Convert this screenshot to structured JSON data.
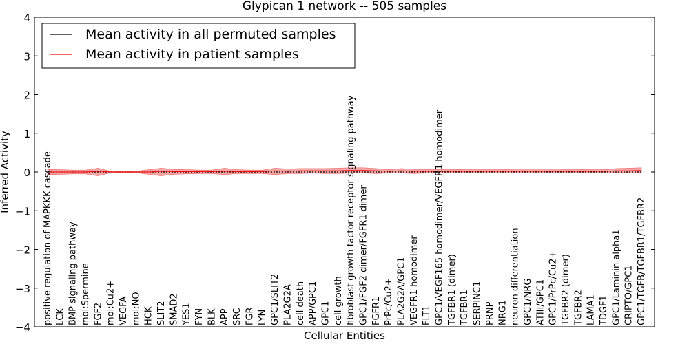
{
  "chart_data": {
    "type": "line",
    "title": "Glypican 1 network -- 505 samples",
    "xlabel": "Cellular Entities",
    "ylabel": "Inferred Activity",
    "ylim": [
      -4,
      4
    ],
    "yticks": [
      -4,
      -3,
      -2,
      -1,
      0,
      1,
      2,
      3,
      4
    ],
    "grid": false,
    "legend_position": "top-left",
    "categories": [
      "positive regulation of MAPKKK cascade",
      "LCK",
      "BMP signaling pathway",
      "mol:Spermine",
      "FGF2",
      "mol:Cu2+",
      "VEGFA",
      "mol:NO",
      "HCK",
      "SLIT2",
      "SMAD2",
      "YES1",
      "FYN",
      "BLK",
      "APP",
      "SRC",
      "FGR",
      "LYN",
      "GPC1/SLIT2",
      "PLA2G2A",
      "cell death",
      "APP/GPC1",
      "GPC1",
      "cell growth",
      "fibroblast growth factor receptor signaling pathway",
      "GPC1/FGF2 dimer/FGFR1 dimer",
      "FGFR1",
      "PrPc/Cu2+",
      "PLA2G2A/GPC1",
      "VEGFR1 homodimer",
      "FLT1",
      "GPC1/VEGF165 homodimer/VEGFR1 homodimer",
      "TGFBR1 (dimer)",
      "TGFBR1",
      "SERPINC1",
      "PRNP",
      "NRG1",
      "neuron differentiation",
      "GPC1/NRG",
      "ATIII/GPC1",
      "GPC1/PrPc/Cu2+",
      "TGFBR2 (dimer)",
      "TGFBR2",
      "LAMA1",
      "TDGF1",
      "GPC1/Laminin alpha1",
      "CRIPTO/GPC1",
      "GPC1/TGFB/TGFBR1/TGFBR2"
    ],
    "series": [
      {
        "name": "Mean activity in all permuted samples",
        "color": "#000000",
        "style": "dotted",
        "values": [
          0,
          0,
          0,
          0,
          0,
          0,
          0,
          0,
          0,
          0,
          0,
          0,
          0,
          0,
          0,
          0,
          0,
          0,
          0,
          0,
          0,
          0,
          0,
          0,
          0,
          0,
          0,
          0,
          0,
          0,
          0,
          0,
          0,
          0,
          0,
          0,
          0,
          0,
          0,
          0,
          0,
          0,
          0,
          0,
          0,
          0,
          0,
          0
        ]
      },
      {
        "name": "Mean activity in patient samples",
        "color": "#ff0000",
        "values": [
          0.0,
          0.0,
          0.0,
          0.0,
          0.02,
          0.0,
          0.0,
          0.0,
          0.0,
          0.02,
          0.01,
          0.01,
          0.01,
          0.01,
          0.02,
          0.01,
          0.01,
          0.01,
          0.03,
          0.02,
          0.03,
          0.03,
          0.03,
          0.03,
          0.04,
          0.04,
          0.03,
          0.02,
          0.03,
          0.02,
          0.02,
          0.02,
          0.02,
          0.02,
          0.02,
          0.02,
          0.02,
          0.02,
          0.02,
          0.02,
          0.02,
          0.02,
          0.02,
          0.02,
          0.02,
          0.03,
          0.03,
          0.04
        ],
        "band_upper": [
          0.07,
          0.06,
          0.05,
          0.05,
          0.1,
          0.02,
          0.02,
          0.02,
          0.06,
          0.1,
          0.07,
          0.06,
          0.05,
          0.05,
          0.1,
          0.06,
          0.05,
          0.05,
          0.1,
          0.08,
          0.09,
          0.09,
          0.09,
          0.1,
          0.11,
          0.11,
          0.09,
          0.06,
          0.09,
          0.07,
          0.07,
          0.07,
          0.07,
          0.06,
          0.06,
          0.06,
          0.06,
          0.08,
          0.08,
          0.08,
          0.08,
          0.07,
          0.07,
          0.06,
          0.06,
          0.09,
          0.1,
          0.11
        ],
        "band_lower": [
          -0.07,
          -0.06,
          -0.05,
          -0.05,
          -0.1,
          -0.02,
          -0.02,
          -0.02,
          -0.06,
          -0.1,
          -0.06,
          -0.05,
          -0.04,
          -0.04,
          -0.07,
          -0.04,
          -0.04,
          -0.04,
          -0.07,
          -0.04,
          -0.04,
          -0.03,
          -0.04,
          -0.04,
          -0.03,
          -0.03,
          -0.04,
          -0.03,
          -0.03,
          -0.04,
          -0.03,
          -0.03,
          -0.03,
          -0.03,
          -0.03,
          -0.03,
          -0.03,
          -0.03,
          -0.03,
          -0.03,
          -0.03,
          -0.03,
          -0.03,
          -0.03,
          -0.03,
          -0.02,
          -0.02,
          -0.03
        ]
      }
    ],
    "band_color": "#f08080"
  }
}
